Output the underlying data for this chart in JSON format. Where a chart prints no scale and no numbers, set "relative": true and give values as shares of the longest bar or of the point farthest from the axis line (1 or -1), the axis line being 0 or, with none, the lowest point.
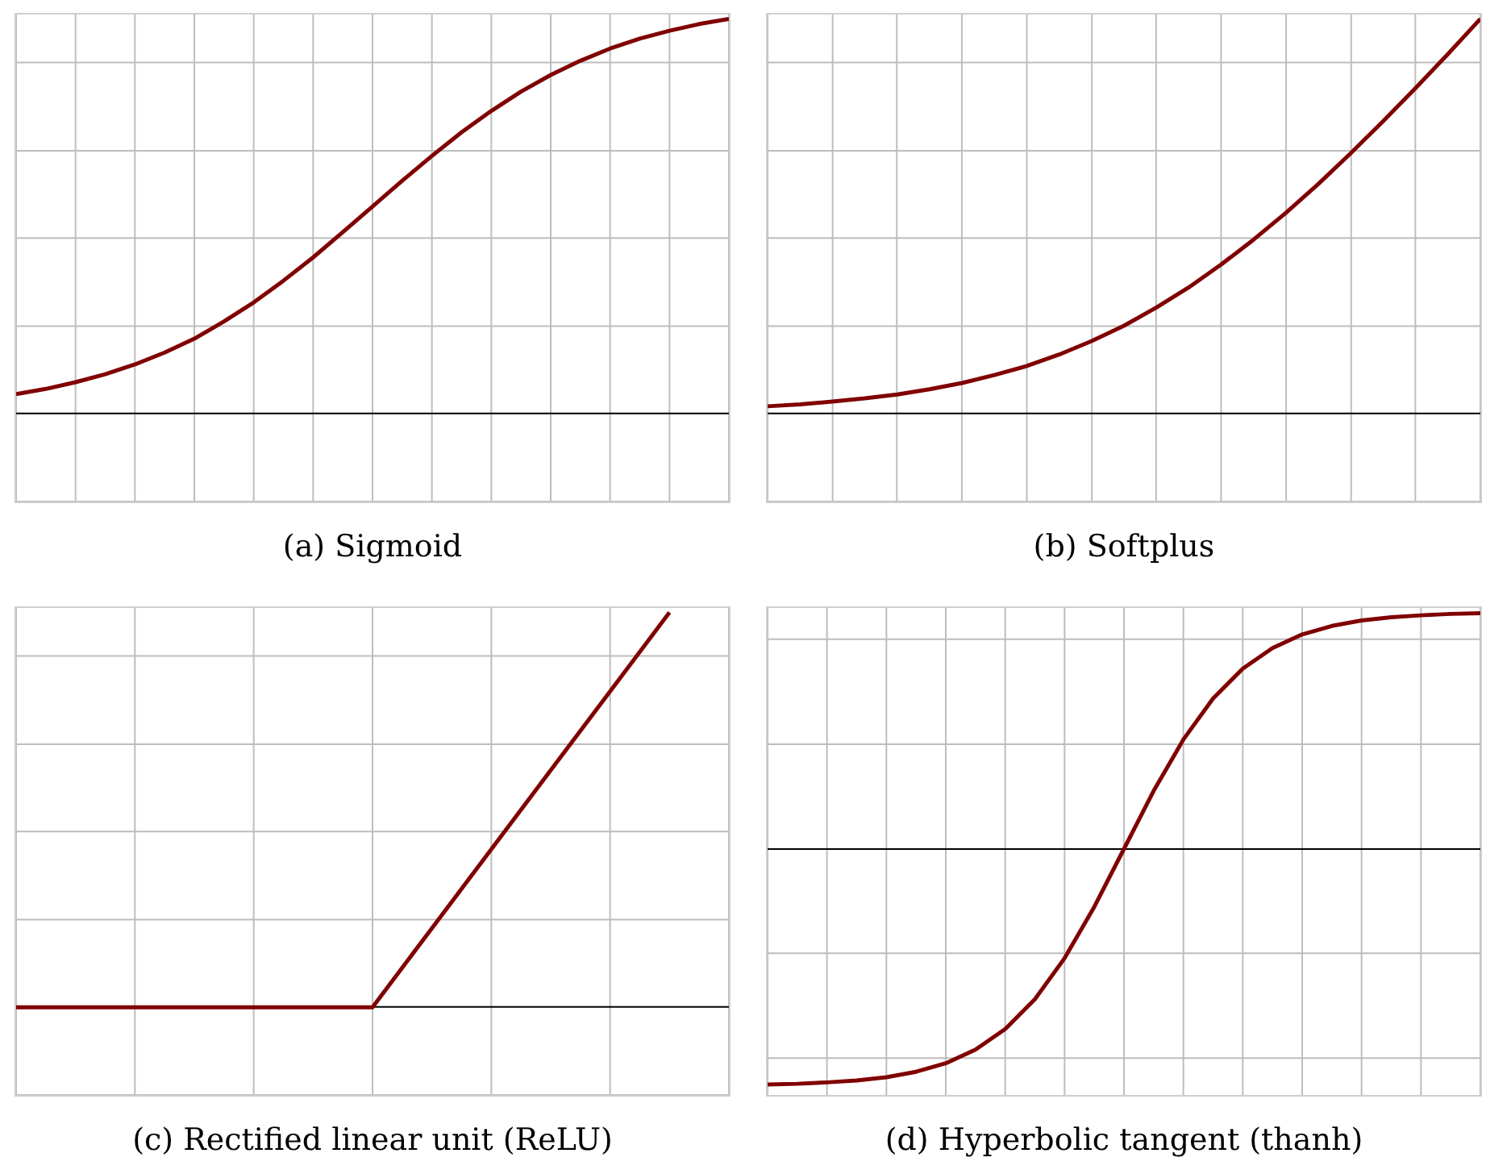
{
  "chart_data": [
    {
      "type": "line",
      "title": "(a) Sigmoid",
      "relative": true,
      "grid": true,
      "legend": false,
      "tick_labels": false,
      "marker": "none",
      "line_style": "solid",
      "categories": [
        null,
        null,
        null,
        null,
        null,
        null,
        null,
        null,
        null,
        null,
        null,
        null,
        null,
        null,
        null,
        null,
        null,
        null,
        null,
        null,
        null,
        null,
        null,
        null,
        null
      ],
      "series": [
        {
          "color": "#800000",
          "values": [
            0.05,
            0.063,
            0.08,
            0.1,
            0.125,
            0.155,
            0.19,
            0.234,
            0.282,
            0.337,
            0.396,
            0.46,
            0.525,
            0.59,
            0.653,
            0.713,
            0.767,
            0.816,
            0.858,
            0.894,
            0.925,
            0.95,
            0.97,
            0.987,
            1
          ]
        }
      ]
    },
    {
      "type": "line",
      "title": "(b) Softplus",
      "relative": true,
      "grid": true,
      "legend": false,
      "tick_labels": false,
      "marker": "none",
      "line_style": "solid",
      "categories": [
        null,
        null,
        null,
        null,
        null,
        null,
        null,
        null,
        null,
        null,
        null,
        null,
        null,
        null,
        null,
        null,
        null,
        null,
        null,
        null,
        null,
        null,
        null
      ],
      "series": [
        {
          "color": "#800000",
          "values": [
            0.019,
            0.024,
            0.031,
            0.039,
            0.049,
            0.062,
            0.078,
            0.098,
            0.121,
            0.15,
            0.184,
            0.223,
            0.269,
            0.32,
            0.378,
            0.441,
            0.509,
            0.582,
            0.66,
            0.741,
            0.825,
            0.911,
            1
          ]
        }
      ]
    },
    {
      "type": "line",
      "title": "(c) Rectified linear unit (ReLU)",
      "relative": true,
      "grid": true,
      "legend": false,
      "tick_labels": false,
      "marker": "none",
      "line_style": "solid",
      "categories": [
        null,
        null,
        null,
        null,
        null,
        null,
        null,
        null,
        null,
        null,
        null,
        null,
        null
      ],
      "series": [
        {
          "color": "#800000",
          "values": [
            0,
            0,
            0,
            0,
            0,
            0,
            0,
            0.2,
            0.4,
            0.6,
            0.8,
            1,
            null
          ]
        }
      ]
    },
    {
      "type": "line",
      "title": "(d) Hyperbolic tangent (thanh)",
      "relative": true,
      "grid": true,
      "legend": false,
      "tick_labels": false,
      "marker": "none",
      "line_style": "solid",
      "categories": [
        null,
        null,
        null,
        null,
        null,
        null,
        null,
        null,
        null,
        null,
        null,
        null,
        null,
        null,
        null,
        null,
        null,
        null,
        null,
        null,
        null,
        null,
        null,
        null,
        null
      ],
      "series": [
        {
          "color": "#800000",
          "values": [
            -1,
            -0.997,
            -0.991,
            -0.983,
            -0.969,
            -0.946,
            -0.91,
            -0.852,
            -0.765,
            -0.638,
            -0.464,
            -0.246,
            0,
            0.246,
            0.464,
            0.638,
            0.765,
            0.852,
            0.91,
            0.946,
            0.969,
            0.983,
            0.991,
            0.997,
            1
          ]
        }
      ]
    }
  ]
}
